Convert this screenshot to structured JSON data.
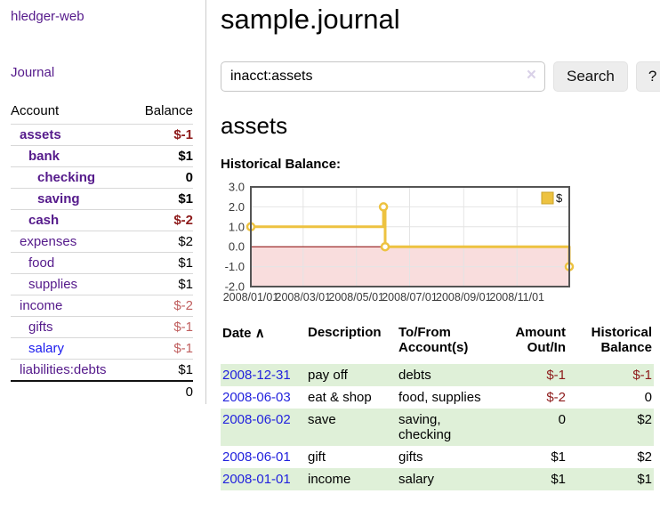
{
  "app_title": "hledger-web",
  "sidebar": {
    "journal_link": "Journal",
    "accounts": {
      "headers": {
        "account": "Account",
        "balance": "Balance"
      },
      "rows": [
        {
          "name": "assets",
          "balance": "$-1",
          "depth": 1,
          "inacct": true,
          "negative": true,
          "unvisited": false
        },
        {
          "name": "bank",
          "balance": "$1",
          "depth": 2,
          "inacct": true,
          "negative": false,
          "unvisited": false
        },
        {
          "name": "checking",
          "balance": "0",
          "depth": 3,
          "inacct": true,
          "negative": false,
          "unvisited": false
        },
        {
          "name": "saving",
          "balance": "$1",
          "depth": 3,
          "inacct": true,
          "negative": false,
          "unvisited": false
        },
        {
          "name": "cash",
          "balance": "$-2",
          "depth": 2,
          "inacct": true,
          "negative": true,
          "unvisited": false
        },
        {
          "name": "expenses",
          "balance": "$2",
          "depth": 1,
          "inacct": false,
          "negative": false,
          "unvisited": false
        },
        {
          "name": "food",
          "balance": "$1",
          "depth": 2,
          "inacct": false,
          "negative": false,
          "unvisited": false
        },
        {
          "name": "supplies",
          "balance": "$1",
          "depth": 2,
          "inacct": false,
          "negative": false,
          "unvisited": false
        },
        {
          "name": "income",
          "balance": "$-2",
          "depth": 1,
          "inacct": false,
          "negative": true,
          "unvisited": false
        },
        {
          "name": "gifts",
          "balance": "$-1",
          "depth": 2,
          "inacct": false,
          "negative": true,
          "unvisited": false
        },
        {
          "name": "salary",
          "balance": "$-1",
          "depth": 2,
          "inacct": false,
          "negative": true,
          "unvisited": true
        },
        {
          "name": "liabilities:debts",
          "balance": "$1",
          "depth": 1,
          "inacct": false,
          "negative": false,
          "unvisited": false
        }
      ],
      "total": "0"
    }
  },
  "main": {
    "page_title": "sample.journal",
    "search": {
      "value": "inacct:assets",
      "clear_icon": "×",
      "search_button": "Search",
      "help_button": "?"
    },
    "account_heading": "assets",
    "chart_heading": "Historical Balance:"
  },
  "chart_data": {
    "type": "line",
    "step": true,
    "title": "Historical Balance:",
    "series": [
      {
        "name": "$",
        "color": "#edc240",
        "points": [
          {
            "date": "2008-01-01",
            "day": 0,
            "value": 1
          },
          {
            "date": "2008-06-01",
            "day": 152,
            "value": 2
          },
          {
            "date": "2008-06-03",
            "day": 154,
            "value": 0
          },
          {
            "date": "2008-12-31",
            "day": 365,
            "value": -1
          }
        ]
      }
    ],
    "x_ticks": [
      {
        "label": "2008/01/01",
        "day": 0
      },
      {
        "label": "2008/03/01",
        "day": 60
      },
      {
        "label": "2008/05/01",
        "day": 121
      },
      {
        "label": "2008/07/01",
        "day": 182
      },
      {
        "label": "2008/09/01",
        "day": 244
      },
      {
        "label": "2008/11/01",
        "day": 305
      }
    ],
    "y_ticks": [
      3,
      2,
      1,
      0,
      -1,
      -2
    ],
    "x_range_days": [
      0,
      365
    ],
    "ylim": [
      -2,
      3
    ],
    "grid": true,
    "legend": {
      "label": "$",
      "position": "top-right"
    },
    "negative_region_color": "#f9dddd",
    "zero_line_color": "#8b0000"
  },
  "register": {
    "headers": {
      "date": "Date",
      "sort_icon": "∧",
      "description": "Description",
      "account": "To/From Account(s)",
      "amount": "Amount Out/In",
      "balance": "Historical Balance"
    },
    "rows": [
      {
        "date": "2008-12-31",
        "description": "pay off",
        "accounts": "debts",
        "amount": "$-1",
        "amount_negative": true,
        "balance": "$-1",
        "balance_negative": true
      },
      {
        "date": "2008-06-03",
        "description": "eat & shop",
        "accounts": "food, supplies",
        "amount": "$-2",
        "amount_negative": true,
        "balance": "0",
        "balance_negative": false
      },
      {
        "date": "2008-06-02",
        "description": "save",
        "accounts": "saving, checking",
        "amount": "0",
        "amount_negative": false,
        "balance": "$2",
        "balance_negative": false
      },
      {
        "date": "2008-06-01",
        "description": "gift",
        "accounts": "gifts",
        "amount": "$1",
        "amount_negative": false,
        "balance": "$2",
        "balance_negative": false
      },
      {
        "date": "2008-01-01",
        "description": "income",
        "accounts": "salary",
        "amount": "$1",
        "amount_negative": false,
        "balance": "$1",
        "balance_negative": false
      }
    ]
  },
  "colors": {
    "link_visited": "#551a8b",
    "link_unvisited": "#1a1aee",
    "date_link": "#2222dd",
    "negative_strong": "#8d1a1a",
    "negative_soft": "#c05f5f",
    "row_stripe_green": "#dff0d8",
    "series_gold": "#edc240",
    "negative_region_pink": "#f9dddd",
    "zero_line_dark_red": "#8b0000"
  }
}
